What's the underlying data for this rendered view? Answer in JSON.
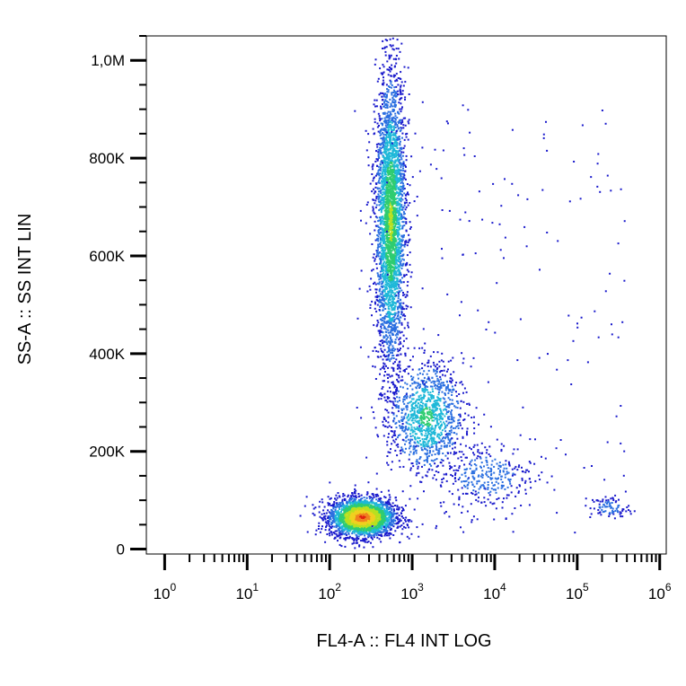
{
  "chart_data": {
    "type": "scatter",
    "style": "density-dot-plot",
    "xlabel": "FL4-A :: FL4 INT LOG",
    "ylabel": "SS-A :: SS INT LIN",
    "x_scale": "log",
    "xlim": [
      0.6,
      1200000
    ],
    "ylim": [
      -10000,
      1050000
    ],
    "x_ticks": [
      {
        "base": "10",
        "exp": "0",
        "value": 1
      },
      {
        "base": "10",
        "exp": "1",
        "value": 10
      },
      {
        "base": "10",
        "exp": "2",
        "value": 100
      },
      {
        "base": "10",
        "exp": "3",
        "value": 1000
      },
      {
        "base": "10",
        "exp": "4",
        "value": 10000
      },
      {
        "base": "10",
        "exp": "5",
        "value": 100000
      },
      {
        "base": "10",
        "exp": "6",
        "value": 1000000
      }
    ],
    "y_ticks": [
      {
        "label": "0",
        "value": 0
      },
      {
        "label": "200K",
        "value": 200000
      },
      {
        "label": "400K",
        "value": 400000
      },
      {
        "label": "600K",
        "value": 600000
      },
      {
        "label": "800K",
        "value": 800000
      },
      {
        "label": "1,0M",
        "value": 1000000
      }
    ],
    "density_colors": [
      "#1a1acc",
      "#2b6fe0",
      "#1fb8d8",
      "#2ecc71",
      "#b8e020",
      "#f0d020",
      "#f08020",
      "#e02010"
    ],
    "populations": [
      {
        "x_center": 250,
        "y_center": 65000,
        "x_spread_decades": 0.2,
        "y_spread": 20000,
        "points": 2600,
        "peak_level": 7
      },
      {
        "x_center": 550,
        "y_center": 670000,
        "x_spread_decades": 0.09,
        "y_spread": 150000,
        "points": 3200,
        "peak_level": 4
      },
      {
        "x_center": 1500,
        "y_center": 270000,
        "x_spread_decades": 0.22,
        "y_spread": 55000,
        "points": 1100,
        "peak_level": 3
      },
      {
        "x_center": 8000,
        "y_center": 150000,
        "x_spread_decades": 0.3,
        "y_spread": 35000,
        "points": 320,
        "peak_level": 1
      },
      {
        "x_center": 250000,
        "y_center": 85000,
        "x_spread_decades": 0.12,
        "y_spread": 12000,
        "points": 90,
        "peak_level": 1
      }
    ]
  }
}
